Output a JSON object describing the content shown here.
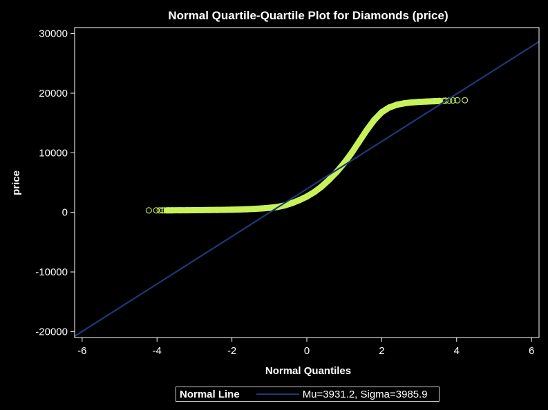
{
  "chart_data": {
    "type": "scatter",
    "title": "Normal Quartile-Quartile Plot for Diamonds (price)",
    "xlabel": "Normal Quantiles",
    "ylabel": "price",
    "xlim": [
      -6.2,
      6.2
    ],
    "ylim": [
      -21000,
      31000
    ],
    "xticks": [
      -6,
      -4,
      -2,
      0,
      2,
      4,
      6
    ],
    "yticks": [
      -20000,
      -10000,
      0,
      10000,
      20000,
      30000
    ],
    "grid": false,
    "legend_position": "bottom",
    "colors": {
      "background": "#000000",
      "points": "#c8f25a",
      "line": "#1a3a7a",
      "axes": "#ffffff"
    },
    "series": [
      {
        "kind": "points",
        "x": [
          -4.22,
          -4.02,
          -3.93,
          -3.86,
          -3.8,
          -3.74,
          -3.7,
          -3.6,
          -3.4,
          -3.2,
          -3.0,
          -2.8,
          -2.6,
          -2.4,
          -2.2,
          -2.0,
          -1.8,
          -1.6,
          -1.4,
          -1.2,
          -1.0,
          -0.8,
          -0.6,
          -0.4,
          -0.2,
          0.0,
          0.2,
          0.4,
          0.6,
          0.8,
          1.0,
          1.2,
          1.4,
          1.6,
          1.8,
          2.0,
          2.2,
          2.4,
          2.6,
          2.8,
          3.0,
          3.2,
          3.4,
          3.55,
          3.65,
          3.7,
          3.8,
          3.9,
          4.02,
          4.22
        ],
        "y": [
          326,
          330,
          335,
          336,
          337,
          338,
          340,
          345,
          350,
          355,
          365,
          375,
          390,
          405,
          425,
          450,
          480,
          520,
          580,
          660,
          760,
          900,
          1150,
          1550,
          2050,
          2650,
          3400,
          4350,
          5500,
          6800,
          8300,
          10000,
          11900,
          13800,
          15500,
          16800,
          17600,
          18050,
          18300,
          18450,
          18540,
          18600,
          18650,
          18690,
          18720,
          18740,
          18760,
          18780,
          18800,
          18823
        ]
      },
      {
        "kind": "line",
        "name": "Normal Line",
        "label": "Mu=3931.2, Sigma=3985.9",
        "mu": 3931.2,
        "sigma": 3985.9
      }
    ]
  },
  "legend": {
    "title": "Normal Line",
    "label": "Mu=3931.2, Sigma=3985.9"
  }
}
